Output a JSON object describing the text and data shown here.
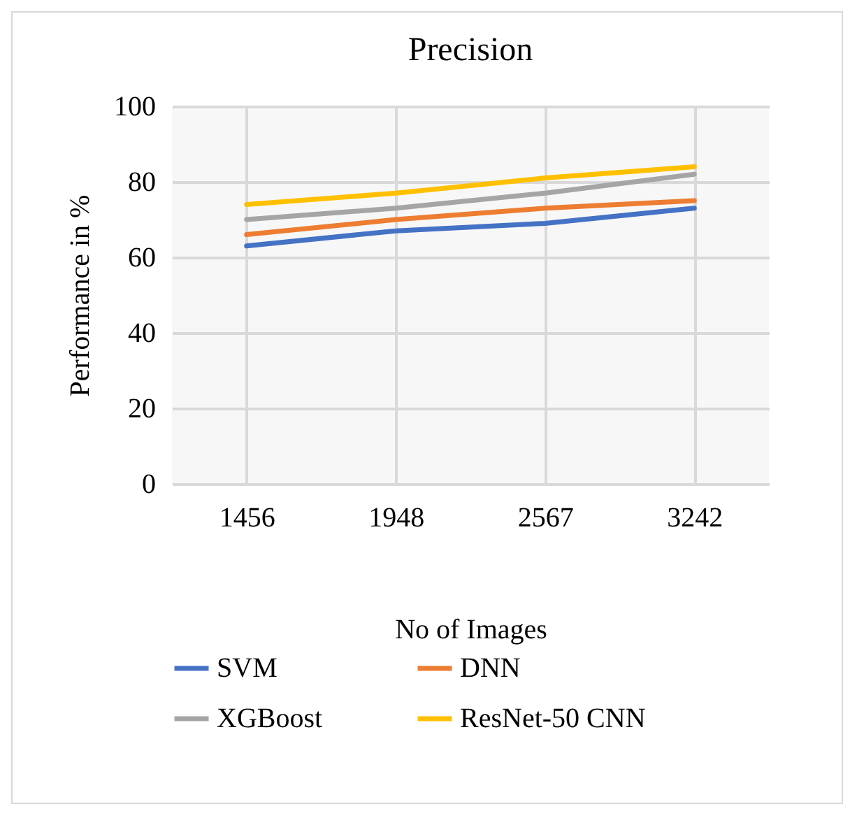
{
  "chart_data": {
    "type": "line",
    "title": "Precision",
    "xlabel": "No of Images",
    "ylabel": "Performance in %",
    "categories": [
      "1456",
      "1948",
      "2567",
      "3242"
    ],
    "series": [
      {
        "name": "SVM",
        "color": "#4472c4",
        "values": [
          63,
          67,
          69,
          73
        ]
      },
      {
        "name": "DNN",
        "color": "#ed7d31",
        "values": [
          66,
          70,
          73,
          75
        ]
      },
      {
        "name": "XGBoost",
        "color": "#a5a5a5",
        "values": [
          70,
          73,
          77,
          82
        ]
      },
      {
        "name": "ResNet-50 CNN",
        "color": "#ffc000",
        "values": [
          74,
          77,
          81,
          84
        ]
      }
    ],
    "ylim": [
      0,
      100
    ],
    "yticks": [
      0,
      20,
      40,
      60,
      80,
      100
    ],
    "grid": true,
    "legend": "bottom"
  }
}
